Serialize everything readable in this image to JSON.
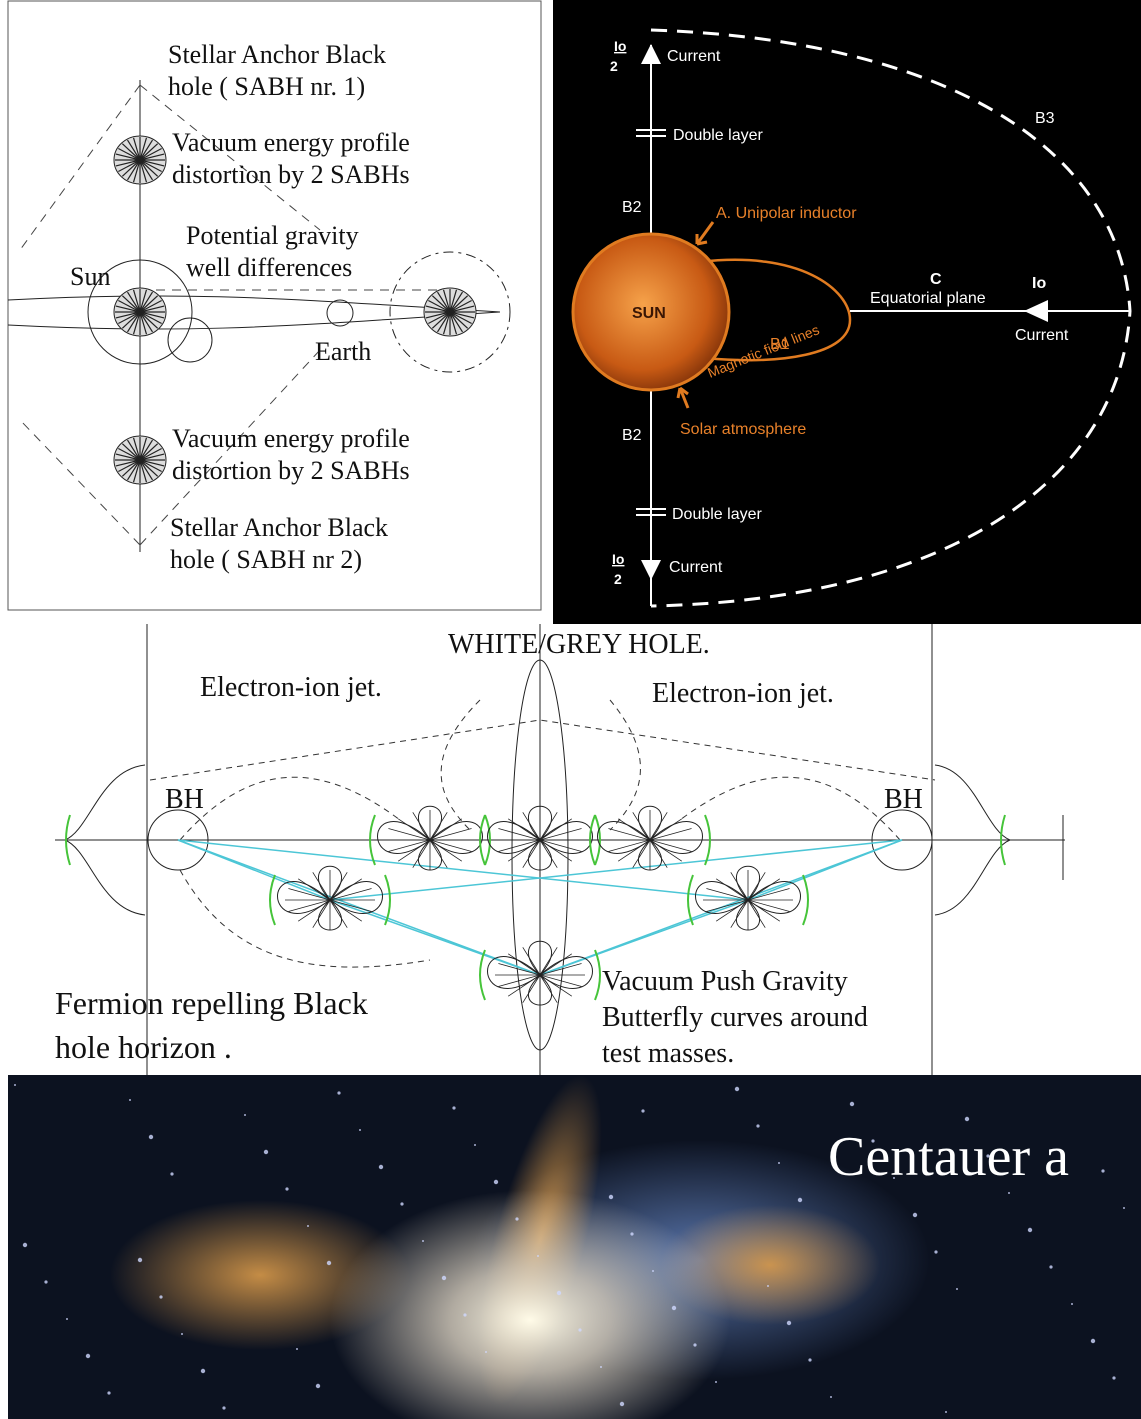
{
  "panel_1": {
    "sabh_1": [
      "Stellar Anchor Black",
      "hole ( SABH nr. 1)"
    ],
    "vacuum_top": [
      "Vacuum energy profile",
      "distortion by 2 SABHs"
    ],
    "potential": [
      "Potential gravity",
      "well differences"
    ],
    "sun": "Sun",
    "earth": "Earth",
    "vacuum_bottom": [
      "Vacuum energy profile",
      "distortion by 2 SABHs"
    ],
    "sabh_2": [
      "Stellar Anchor Black",
      "hole ( SABH nr 2)"
    ]
  },
  "panel_2": {
    "io_top": {
      "numerator": "Io",
      "denominator": "2"
    },
    "current_top": "Current",
    "double_layer_top": "Double layer",
    "b3": "B3",
    "b2_top": "B2",
    "unipolar": "A. Unipolar inductor",
    "c": "C",
    "equatorial": "Equatorial plane",
    "io_right": "Io",
    "current_right": "Current",
    "sun": "SUN",
    "b1": "B1",
    "magnetic": "Magnetic field lines",
    "b2_bottom": "B2",
    "solar_atmosphere": "Solar atmosphere",
    "double_layer_bottom": "Double layer",
    "io_bottom": {
      "numerator": "Io",
      "denominator": "2"
    },
    "current_bottom": "Current"
  },
  "panel_3": {
    "title": "WHITE/GREY HOLE.",
    "jet_left": "Electron-ion jet.",
    "jet_right": "Electron-ion jet.",
    "bh_left": "BH",
    "bh_right": "BH",
    "fermion": [
      "Fermion repelling Black",
      "hole horizon ."
    ],
    "vacuum_push": [
      "Vacuum Push Gravity",
      "Butterfly curves around",
      "test masses."
    ]
  },
  "panel_4": {
    "title": "Centauer a"
  }
}
